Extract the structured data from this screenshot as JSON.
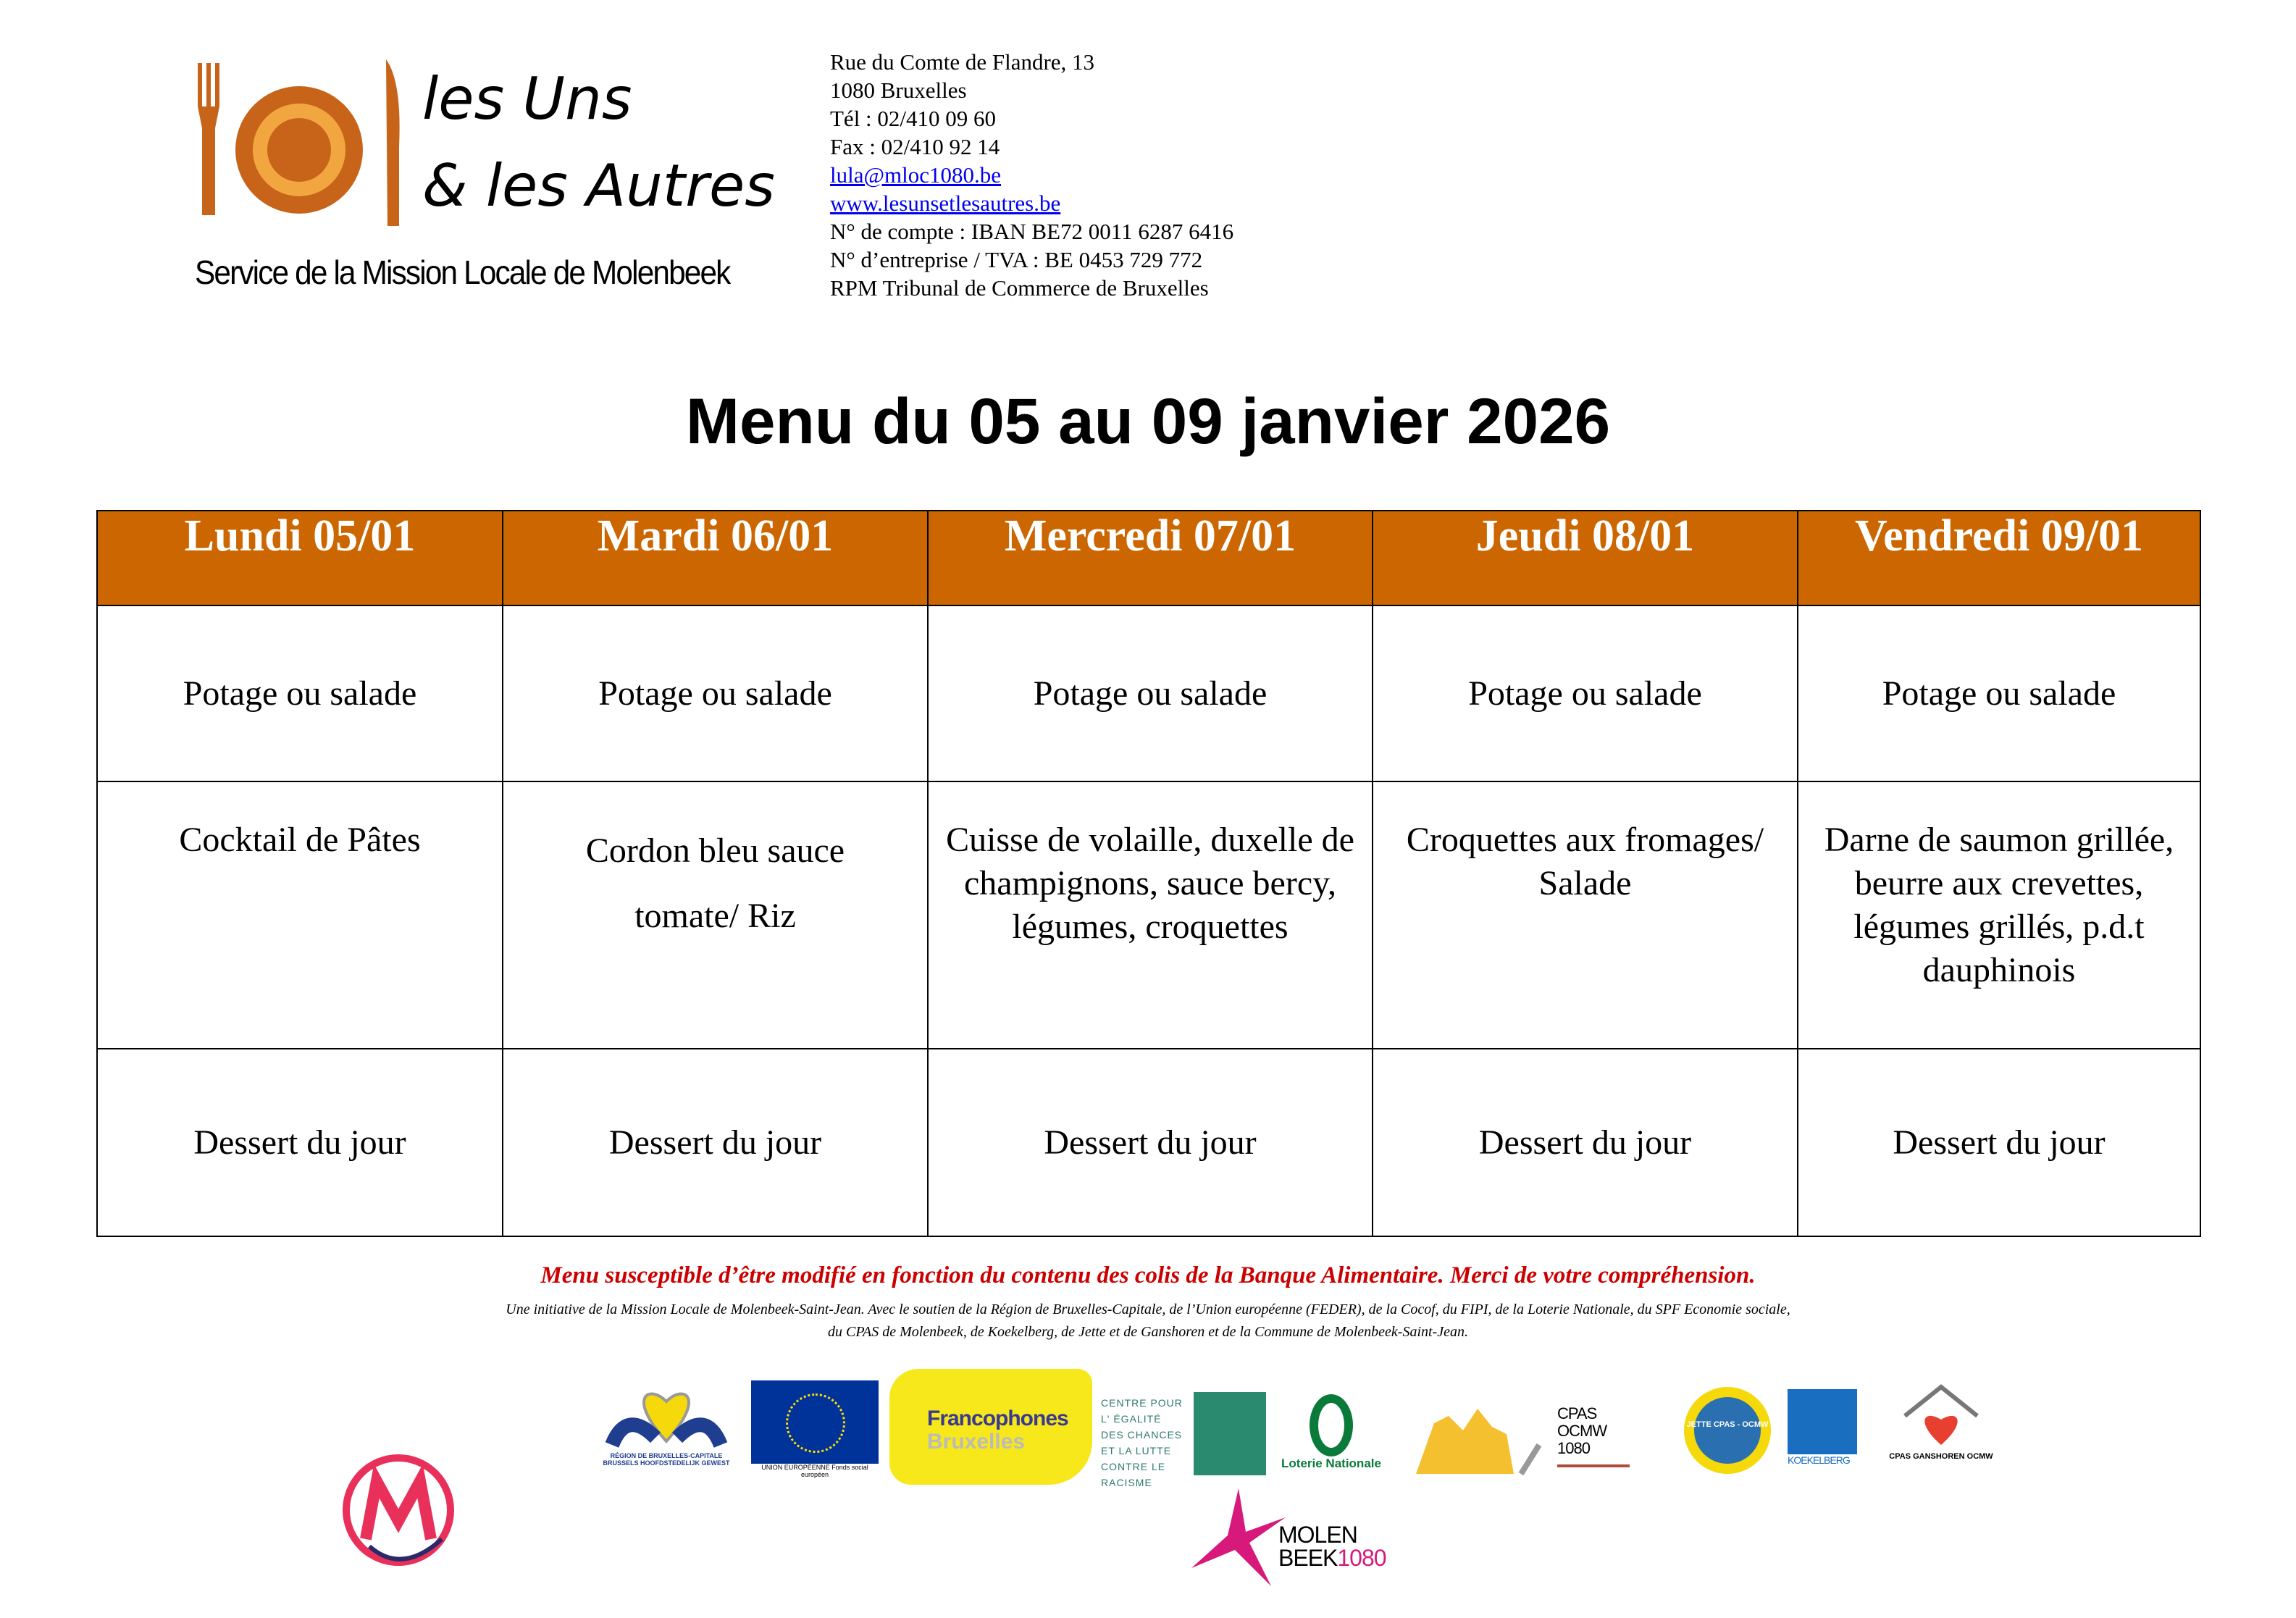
{
  "header": {
    "logo": {
      "text_line1": "les Uns",
      "text_line2": "& les Autres",
      "tagline": "Service de la Mission Locale de Molenbeek"
    },
    "address": [
      "Rue du Comte de Flandre, 13",
      "1080 Bruxelles",
      "Tél : 02/410 09 60",
      "Fax : 02/410 92 14"
    ],
    "email": "lula@mloc1080.be",
    "website": "www.lesunsetlesautres.be",
    "legal": [
      "N° de compte : IBAN BE72 0011 6287 6416",
      "N° d’entreprise / TVA : BE 0453 729 772",
      "RPM Tribunal de Commerce de Bruxelles"
    ]
  },
  "title": "Menu du 05 au 09 janvier 2026",
  "colors": {
    "header_bg": "#cc6600",
    "note": "#cc0000",
    "link": "#0000ee"
  },
  "menu": {
    "days": [
      "Lundi 05/01",
      "Mardi 06/01",
      "Mercredi 07/01",
      "Jeudi 08/01",
      "Vendredi 09/01"
    ],
    "starters": [
      "Potage ou salade",
      "Potage ou salade",
      "Potage ou salade",
      "Potage ou salade",
      "Potage ou salade"
    ],
    "mains": [
      "Cocktail de Pâtes",
      "Cordon bleu sauce tomate/ Riz",
      "Cuisse de volaille, duxelle de champignons, sauce bercy, légumes, croquettes",
      "Croquettes aux fromages/ Salade",
      "Darne de saumon grillée, beurre aux crevettes, légumes grillés, p.d.t dauphinois"
    ],
    "desserts": [
      "Dessert du jour",
      "Dessert du jour",
      "Dessert du jour",
      "Dessert du jour",
      "Dessert du jour"
    ]
  },
  "footer": {
    "note": "Menu susceptible d’être modifié en fonction du contenu des colis de la Banque Alimentaire. Merci de votre compréhension.",
    "credits_line1": "Une initiative de la Mission Locale de Molenbeek-Saint-Jean. Avec le soutien de la Région de Bruxelles-Capitale, de l’Union européenne (FEDER), de la Cocof, du FIPI, de la Loterie Nationale, du SPF Economie sociale,",
    "credits_line2": "du CPAS de Molenbeek, de Koekelberg, de Jette et de Ganshoren et de la Commune de Molenbeek-Saint-Jean.",
    "sponsors": {
      "region": "RÉGION DE BRUXELLES-CAPITALE BRUSSELS HOOFDSTEDELIJK GEWEST",
      "eu": "UNION EUROPÉENNE Fonds social européen",
      "francophones_1": "Francophones",
      "francophones_2": "Bruxelles",
      "egalite": "CENTRE POUR L' ÉGALITÉ DES CHANCES ET LA LUTTE CONTRE LE RACISME",
      "loterie": "Loterie Nationale",
      "cpas": "CPAS OCMW 1080",
      "jette": "JETTE CPAS - OCMW",
      "koekelberg": "KOEKELBERG",
      "ganshoren": "CPAS GANSHOREN OCMW",
      "molenbeek_1": "MOLEN",
      "molenbeek_2": "BEEK",
      "molenbeek_3": "1080"
    }
  }
}
